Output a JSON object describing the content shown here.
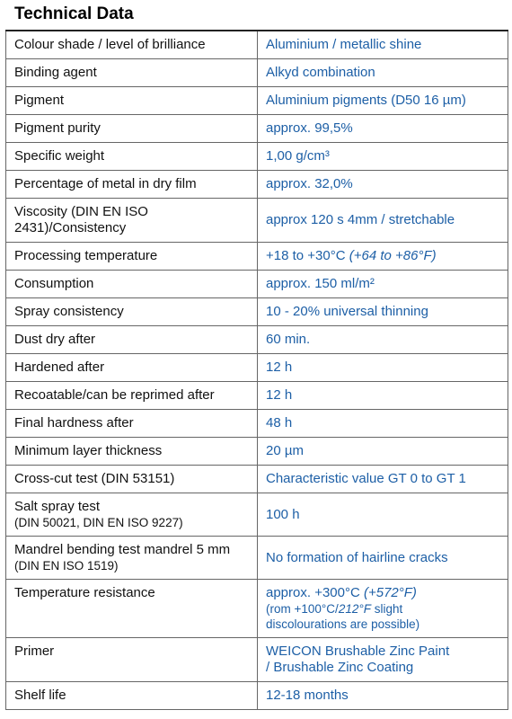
{
  "header": {
    "title": "Technical Data"
  },
  "table": {
    "rows": [
      {
        "label": [
          "Colour shade / level of brilliance"
        ],
        "value": [
          [
            {
              "text": "Aluminium / metallic shine"
            }
          ]
        ]
      },
      {
        "label": [
          "Binding agent"
        ],
        "value": [
          [
            {
              "text": "Alkyd combination"
            }
          ]
        ]
      },
      {
        "label": [
          "Pigment"
        ],
        "value": [
          [
            {
              "text": "Aluminium pigments (D50 16 µm)"
            }
          ]
        ]
      },
      {
        "label": [
          "Pigment purity"
        ],
        "value": [
          [
            {
              "text": "approx. 99,5%"
            }
          ]
        ]
      },
      {
        "label": [
          "Specific weight"
        ],
        "value": [
          [
            {
              "text": "1,00 g/cm³"
            }
          ]
        ]
      },
      {
        "label": [
          "Percentage of metal in dry film"
        ],
        "value": [
          [
            {
              "text": "approx. 32,0%"
            }
          ]
        ]
      },
      {
        "label": [
          "Viscosity (DIN EN ISO",
          "2431)/Consistency"
        ],
        "value": [
          [
            {
              "text": "approx 120 s 4mm / stretchable"
            }
          ]
        ]
      },
      {
        "label": [
          "Processing temperature"
        ],
        "value": [
          [
            {
              "text": "+18 to +30°C "
            },
            {
              "text": "(+64 to +86°F)",
              "italic": true
            }
          ]
        ]
      },
      {
        "label": [
          "Consumption"
        ],
        "value": [
          [
            {
              "text": "approx. 150 ml/m²"
            }
          ]
        ]
      },
      {
        "label": [
          "Spray consistency"
        ],
        "value": [
          [
            {
              "text": "10 - 20% universal thinning"
            }
          ]
        ]
      },
      {
        "label": [
          "Dust dry after"
        ],
        "value": [
          [
            {
              "text": "60 min."
            }
          ]
        ]
      },
      {
        "label": [
          "Hardened after"
        ],
        "value": [
          [
            {
              "text": "12 h"
            }
          ]
        ]
      },
      {
        "label": [
          "Recoatable/can be reprimed after"
        ],
        "value": [
          [
            {
              "text": "12 h"
            }
          ]
        ]
      },
      {
        "label": [
          "Final hardness after"
        ],
        "value": [
          [
            {
              "text": "48 h"
            }
          ]
        ]
      },
      {
        "label": [
          "Minimum layer thickness"
        ],
        "value": [
          [
            {
              "text": "20 µm"
            }
          ]
        ]
      },
      {
        "label": [
          "Cross-cut test (DIN 53151)"
        ],
        "value": [
          [
            {
              "text": "Characteristic value GT 0 to GT 1"
            }
          ]
        ]
      },
      {
        "label": [
          "Salt spray test"
        ],
        "label_note": "(DIN 50021, DIN EN ISO 9227)",
        "value": [
          [
            {
              "text": "100 h"
            }
          ]
        ]
      },
      {
        "label": [
          "Mandrel bending test mandrel 5 mm"
        ],
        "label_note": "(DIN EN ISO 1519)",
        "value": [
          [
            {
              "text": "No formation of hairline cracks"
            }
          ]
        ]
      },
      {
        "label": [
          "Temperature resistance"
        ],
        "value": [
          [
            {
              "text": "approx. +300°C "
            },
            {
              "text": "(+572°F)",
              "italic": true
            }
          ]
        ],
        "value_note": [
          [
            {
              "text": "(rom +100°C/"
            },
            {
              "text": "212°F",
              "italic": true
            },
            {
              "text": " slight"
            }
          ],
          [
            {
              "text": "discolourations are possible)"
            }
          ]
        ]
      },
      {
        "label": [
          "Primer"
        ],
        "value": [
          [
            {
              "text": "WEICON Brushable Zinc Paint"
            }
          ],
          [
            {
              "text": "/ Brushable Zinc Coating"
            }
          ]
        ]
      },
      {
        "label": [
          "Shelf life"
        ],
        "value": [
          [
            {
              "text": "12-18 months"
            }
          ]
        ]
      }
    ]
  }
}
